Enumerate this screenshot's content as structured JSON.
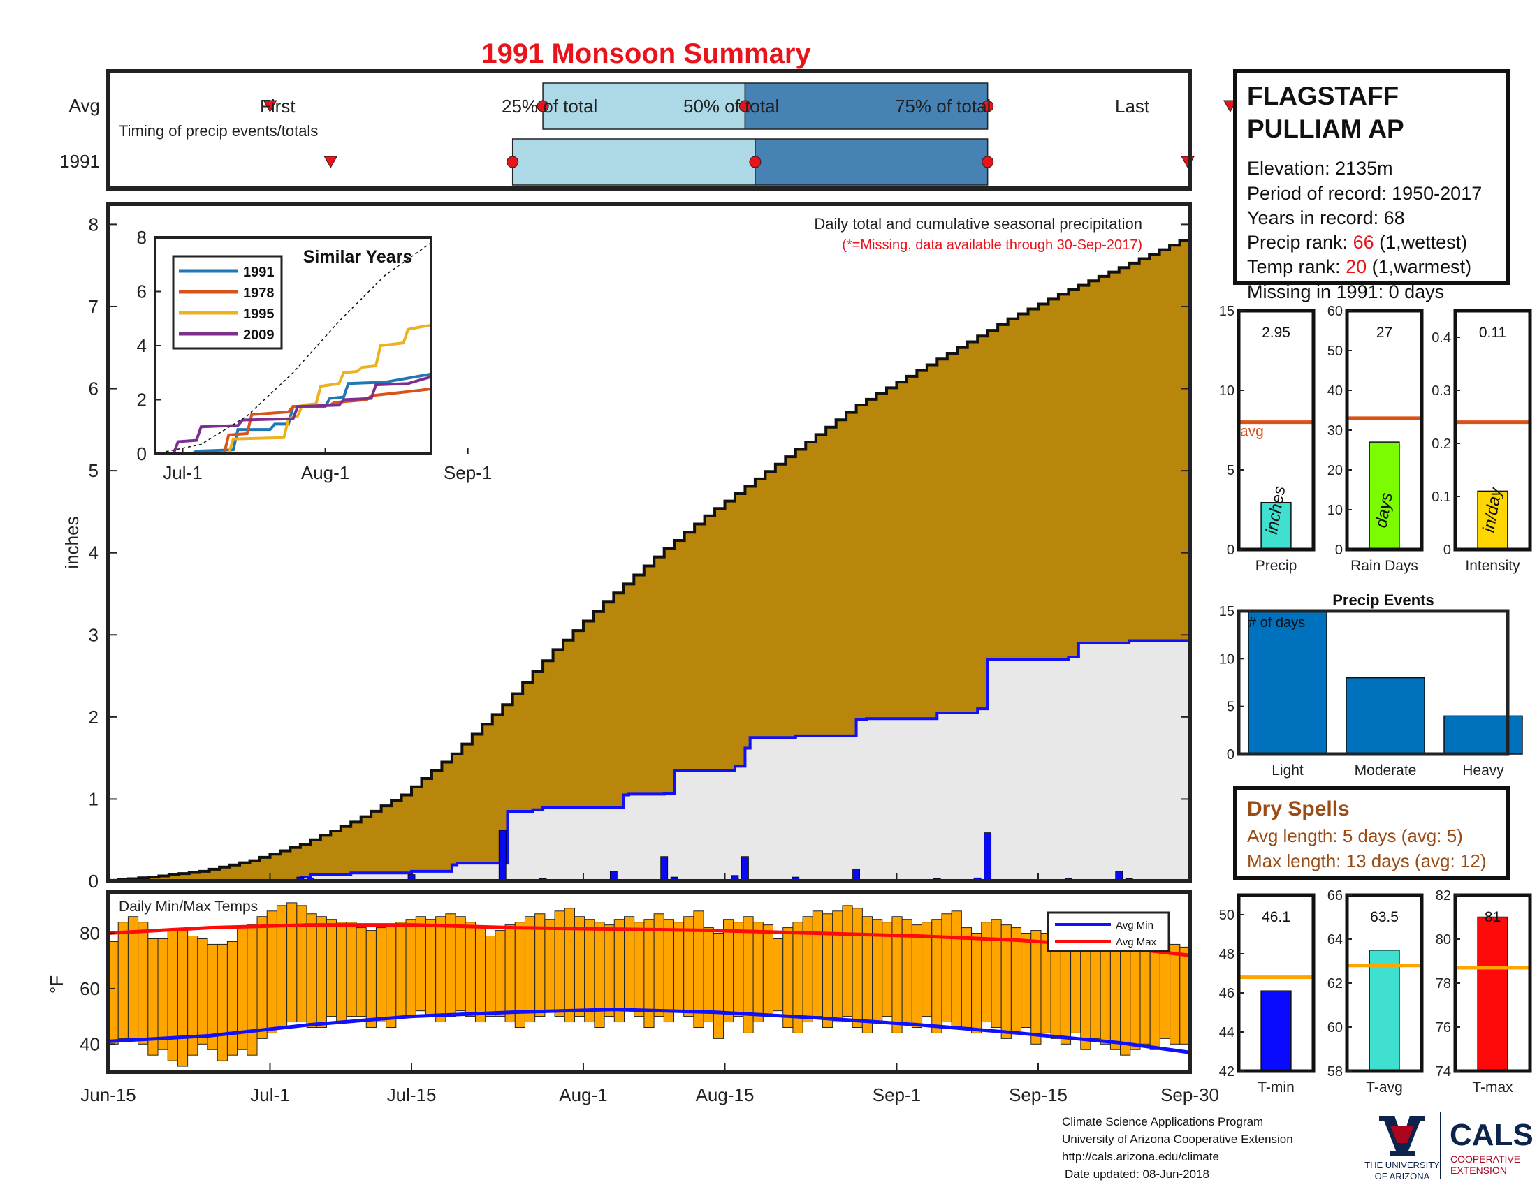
{
  "title": "1991 Monsoon Summary",
  "timing": {
    "caption": "Timing of precip events/totals",
    "row_labels": [
      "Avg",
      "1991"
    ],
    "avg_labels": {
      "first": "First",
      "q25": "25% of total",
      "q50": "50% of total",
      "q75": "75% of total",
      "last": "Last"
    },
    "avg_days": {
      "first": 16,
      "q25": 43,
      "q50": 63,
      "q75": 87,
      "last": 111
    },
    "year_days": {
      "first": 22,
      "q25": 40,
      "q50": 64,
      "q75": 87,
      "last": 107
    }
  },
  "station": {
    "name_line1": "FLAGSTAFF",
    "name_line2": "PULLIAM AP",
    "elevation": "Elevation: 2135m",
    "period": "Period of record: 1950-2017",
    "years": "Years in record: 68",
    "precip_rank_prefix": "Precip rank: ",
    "precip_rank_value": "66",
    "precip_rank_suffix": " (1,wettest)",
    "temp_rank_prefix": "Temp rank: ",
    "temp_rank_value": "20",
    "temp_rank_suffix": " (1,warmest)",
    "missing": "Missing in 1991: 0 days"
  },
  "main_plot": {
    "note": "Daily total and cumulative seasonal precipitation",
    "note_missing": "(*=Missing, data available through 30-Sep-2017)",
    "ylabel": "inches",
    "yticks": [
      "0",
      "1",
      "2",
      "3",
      "4",
      "5",
      "6",
      "7",
      "8"
    ],
    "xticks": [
      "Jun-15",
      "Jul-1",
      "Jul-15",
      "Aug-1",
      "Aug-15",
      "Sep-1",
      "Sep-15",
      "Sep-30"
    ],
    "colors": {
      "avg_fill": "#b8860b",
      "year_fill": "#e8e8e8",
      "year_line": "#1010ff",
      "daily_bars": "#0a0af0"
    }
  },
  "inset": {
    "title": "Similar Years",
    "yticks": [
      "0",
      "2",
      "4",
      "6",
      "8"
    ],
    "xticks": [
      "Jul-1",
      "Aug-1",
      "Sep-1"
    ],
    "legend": [
      "1991",
      "1978",
      "1995",
      "2009"
    ],
    "colors": [
      "#1f77b4",
      "#d95319",
      "#edb120",
      "#7e2f8e"
    ]
  },
  "temp_plot": {
    "title": "Daily Min/Max Temps",
    "ylabel": "°F",
    "yticks": [
      "40",
      "60",
      "80"
    ],
    "legend": [
      "Avg Min",
      "Avg Max"
    ]
  },
  "small_precip": [
    {
      "label": "Precip",
      "value_text": "2.95",
      "unit": "inches",
      "yticks": [
        "0",
        "5",
        "10",
        "15"
      ],
      "avg_label": "avg"
    },
    {
      "label": "Rain Days",
      "value_text": "27",
      "unit": "days",
      "yticks": [
        "0",
        "10",
        "20",
        "30",
        "40",
        "50",
        "60"
      ]
    },
    {
      "label": "Intensity",
      "value_text": "0.11",
      "unit": "in/day",
      "yticks": [
        "0",
        "0.1",
        "0.2",
        "0.3",
        "0.4"
      ]
    }
  ],
  "events": {
    "title": "Precip Events",
    "inner_label": "# of days",
    "yticks": [
      "0",
      "5",
      "10",
      "15"
    ]
  },
  "dry_spells": {
    "title": "Dry Spells",
    "avg_length": "Avg length: 5 days (avg: 5)",
    "max_length": "Max length: 13 days (avg: 12)"
  },
  "small_temp": [
    {
      "label": "T-min",
      "value_text": "46.1",
      "yticks": [
        "42",
        "44",
        "46",
        "48",
        "50"
      ]
    },
    {
      "label": "T-avg",
      "value_text": "63.5",
      "yticks": [
        "58",
        "60",
        "62",
        "64",
        "66"
      ]
    },
    {
      "label": "T-max",
      "value_text": "81",
      "yticks": [
        "74",
        "76",
        "78",
        "80",
        "82"
      ]
    }
  ],
  "footer": {
    "line1": "Climate Science Applications Program",
    "line2": "University of Arizona Cooperative Extension",
    "line3": "http://cals.arizona.edu/climate",
    "line4": "Date updated: 08-Jun-2018"
  },
  "logos": {
    "ua_line1": "THE UNIVERSITY",
    "ua_line2": "OF ARIZONA",
    "cals": "CALS",
    "cals_sub1": "COOPERATIVE",
    "cals_sub2": "EXTENSION"
  },
  "chart_data": [
    {
      "type": "area",
      "name": "cumulative precipitation",
      "x_unit": "days since Jun-15",
      "x_range": [
        0,
        107
      ],
      "ylim": [
        0,
        8
      ],
      "avg_cumulative": {
        "x": [
          0,
          5,
          10,
          15,
          20,
          25,
          30,
          35,
          40,
          45,
          50,
          55,
          60,
          65,
          70,
          75,
          80,
          85,
          90,
          95,
          100,
          107
        ],
        "y": [
          0,
          0.05,
          0.12,
          0.25,
          0.45,
          0.72,
          1.05,
          1.55,
          2.15,
          2.82,
          3.4,
          3.95,
          4.45,
          4.9,
          5.35,
          5.8,
          6.15,
          6.5,
          6.85,
          7.15,
          7.42,
          7.8
        ]
      },
      "year_cumulative": {
        "x": [
          19,
          20,
          24,
          30,
          34,
          34.5,
          39,
          39.5,
          42,
          43,
          50,
          51,
          51.5,
          55,
          56,
          62,
          63,
          63.5,
          68,
          74,
          75,
          82,
          86,
          87,
          95,
          96,
          100,
          101,
          107
        ],
        "y": [
          0.05,
          0.08,
          0.1,
          0.12,
          0.2,
          0.22,
          0.22,
          0.85,
          0.87,
          0.9,
          0.9,
          1.05,
          1.06,
          1.07,
          1.35,
          1.4,
          1.62,
          1.75,
          1.77,
          1.97,
          1.98,
          2.05,
          2.1,
          2.7,
          2.73,
          2.9,
          2.9,
          2.93,
          2.93
        ]
      },
      "daily_bars": {
        "x": [
          19,
          20,
          24,
          30,
          39,
          43,
          50,
          55,
          56,
          62,
          63,
          63.5,
          68,
          74,
          75,
          82,
          86,
          87,
          95,
          100,
          101
        ],
        "y": [
          0.05,
          0.04,
          0.02,
          0.08,
          0.62,
          0.03,
          0.12,
          0.3,
          0.05,
          0.07,
          0.3,
          0.02,
          0.05,
          0.15,
          0.02,
          0.03,
          0.04,
          0.59,
          0.03,
          0.12,
          0.03
        ]
      }
    },
    {
      "type": "line",
      "name": "Similar Years",
      "ylim": [
        0,
        8
      ],
      "series": [
        {
          "name": "1991",
          "x": [
            0,
            8,
            9,
            17,
            18,
            25,
            26,
            29,
            30,
            37,
            38,
            41,
            42,
            50,
            60
          ],
          "y": [
            0,
            0,
            0.1,
            0.15,
            0.9,
            0.9,
            1.1,
            1.1,
            1.75,
            1.75,
            2.05,
            2.1,
            2.6,
            2.65,
            2.95
          ]
        },
        {
          "name": "1978",
          "x": [
            0,
            15,
            16,
            20,
            21,
            29,
            30,
            38,
            39,
            46,
            47,
            55,
            60
          ],
          "y": [
            0,
            0,
            0.7,
            0.75,
            1.45,
            1.55,
            1.75,
            1.8,
            1.9,
            2.0,
            2.15,
            2.3,
            2.4
          ]
        },
        {
          "name": "1995",
          "x": [
            0,
            16,
            17,
            28,
            29,
            31,
            32,
            35,
            36,
            40,
            41,
            44,
            45,
            48,
            49,
            54,
            55,
            58,
            60
          ],
          "y": [
            0,
            0,
            0.55,
            0.6,
            1.3,
            1.4,
            1.8,
            1.85,
            2.5,
            2.6,
            3.0,
            3.05,
            3.2,
            3.25,
            4.0,
            4.1,
            4.6,
            4.7,
            4.75
          ]
        },
        {
          "name": "2009",
          "x": [
            0,
            4,
            5,
            9,
            10,
            18,
            19,
            30,
            31,
            40,
            41,
            47,
            48,
            55,
            60
          ],
          "y": [
            0,
            0,
            0.45,
            0.5,
            1.0,
            1.05,
            1.25,
            1.3,
            1.75,
            1.8,
            2.0,
            2.05,
            2.55,
            2.6,
            2.85
          ]
        },
        {
          "name": "avg",
          "x": [
            0,
            10,
            20,
            30,
            40,
            50,
            60
          ],
          "y": [
            0,
            0.35,
            1.4,
            3.0,
            4.9,
            6.6,
            7.8
          ]
        }
      ]
    },
    {
      "type": "bar",
      "name": "Daily Min/Max Temps",
      "ylim": [
        30,
        95
      ],
      "note": "daily floating bars from min to max, one per day Jun-15..Sep-30",
      "tmax": [
        77,
        84,
        86,
        84,
        78,
        78,
        81,
        81,
        79,
        78,
        76,
        76,
        77,
        82,
        83,
        86,
        88,
        90,
        91,
        90,
        87,
        86,
        85,
        84,
        84,
        82,
        81,
        82,
        83,
        84,
        85,
        86,
        85,
        86,
        87,
        86,
        84,
        82,
        79,
        81,
        83,
        84,
        86,
        87,
        85,
        88,
        89,
        86,
        85,
        84,
        83,
        85,
        86,
        84,
        85,
        87,
        85,
        84,
        86,
        88,
        82,
        80,
        85,
        84,
        86,
        84,
        83,
        78,
        82,
        84,
        86,
        88,
        87,
        88,
        90,
        89,
        86,
        85,
        84,
        86,
        85,
        83,
        84,
        85,
        87,
        88,
        82,
        80,
        84,
        85,
        83,
        82,
        80,
        81,
        80,
        83,
        82,
        79,
        80,
        78,
        76,
        78,
        77,
        75,
        76,
        77,
        78,
        76,
        75
      ],
      "tmin": [
        40,
        42,
        42,
        40,
        36,
        38,
        34,
        32,
        36,
        40,
        38,
        34,
        36,
        38,
        36,
        42,
        44,
        46,
        48,
        48,
        46,
        46,
        50,
        48,
        50,
        50,
        46,
        48,
        46,
        50,
        50,
        52,
        50,
        48,
        50,
        52,
        50,
        48,
        50,
        50,
        48,
        46,
        48,
        50,
        52,
        50,
        48,
        50,
        48,
        46,
        50,
        48,
        52,
        50,
        46,
        50,
        48,
        52,
        50,
        46,
        48,
        42,
        48,
        50,
        44,
        48,
        50,
        52,
        46,
        44,
        48,
        50,
        46,
        48,
        50,
        46,
        44,
        48,
        50,
        44,
        48,
        46,
        50,
        44,
        48,
        46,
        46,
        44,
        48,
        46,
        42,
        44,
        46,
        40,
        44,
        42,
        40,
        44,
        38,
        42,
        40,
        38,
        36,
        38,
        40,
        38,
        42,
        40,
        40
      ],
      "avg_min": {
        "x": [
          0,
          10,
          20,
          30,
          40,
          50,
          60,
          70,
          80,
          90,
          100,
          107
        ],
        "y": [
          41,
          43,
          47,
          50,
          51.5,
          52.5,
          51.5,
          49.5,
          47,
          44,
          40.5,
          37
        ]
      },
      "avg_max": {
        "x": [
          0,
          10,
          20,
          30,
          40,
          50,
          60,
          70,
          80,
          90,
          100,
          107
        ],
        "y": [
          80,
          82,
          83,
          83,
          82,
          81.5,
          81,
          80,
          79,
          77.5,
          75,
          72
        ]
      }
    },
    {
      "type": "bar",
      "name": "Precip",
      "categories": [
        "Precip"
      ],
      "values": [
        2.95
      ],
      "avg": 8,
      "ylim": [
        0,
        15
      ]
    },
    {
      "type": "bar",
      "name": "Rain Days",
      "categories": [
        "Rain Days"
      ],
      "values": [
        27
      ],
      "avg": 33,
      "ylim": [
        0,
        60
      ]
    },
    {
      "type": "bar",
      "name": "Intensity",
      "categories": [
        "Intensity"
      ],
      "values": [
        0.11
      ],
      "avg": 0.24,
      "ylim": [
        0,
        0.45
      ]
    },
    {
      "type": "bar",
      "name": "Precip Events",
      "categories": [
        "Light",
        "Moderate",
        "Heavy"
      ],
      "values": [
        15,
        8,
        4
      ],
      "ylim": [
        0,
        15
      ]
    },
    {
      "type": "bar",
      "name": "T-min",
      "categories": [
        "T-min"
      ],
      "values": [
        46.1
      ],
      "avg": 46.8,
      "ylim": [
        42,
        51
      ]
    },
    {
      "type": "bar",
      "name": "T-avg",
      "categories": [
        "T-avg"
      ],
      "values": [
        63.5
      ],
      "avg": 62.8,
      "ylim": [
        58,
        66
      ]
    },
    {
      "type": "bar",
      "name": "T-max",
      "categories": [
        "T-max"
      ],
      "values": [
        81
      ],
      "avg": 78.7,
      "ylim": [
        74,
        82
      ]
    }
  ]
}
